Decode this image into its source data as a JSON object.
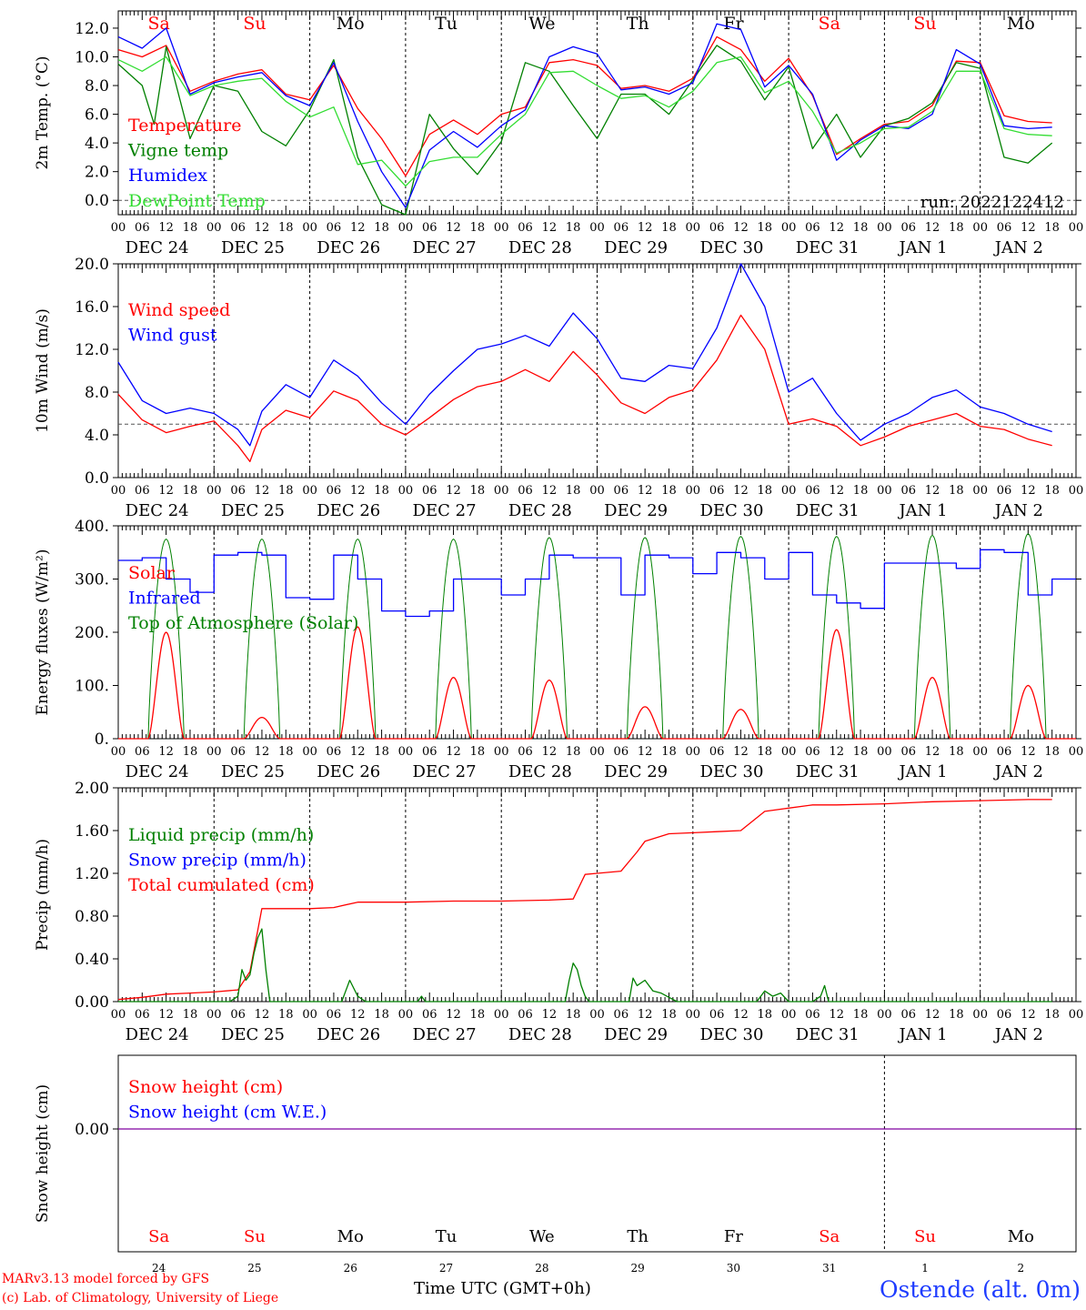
{
  "days_top": [
    {
      "label": "Sa",
      "color": "#ff0000"
    },
    {
      "label": "Su",
      "color": "#ff0000"
    },
    {
      "label": "Mo",
      "color": "#000000"
    },
    {
      "label": "Tu",
      "color": "#000000"
    },
    {
      "label": "We",
      "color": "#000000"
    },
    {
      "label": "Th",
      "color": "#000000"
    },
    {
      "label": "Fr",
      "color": "#000000"
    },
    {
      "label": "Sa",
      "color": "#ff0000"
    },
    {
      "label": "Su",
      "color": "#ff0000"
    },
    {
      "label": "Mo",
      "color": "#000000"
    }
  ],
  "date_labels": [
    "DEC 24",
    "DEC 25",
    "DEC 26",
    "DEC 27",
    "DEC 28",
    "DEC 29",
    "DEC 30",
    "DEC 31",
    "JAN  1",
    "JAN  2"
  ],
  "hour_labels": [
    "00",
    "06",
    "12",
    "18"
  ],
  "final_hour_label": "00",
  "bottom_day_numbers": [
    "24",
    "25",
    "26",
    "27",
    "28",
    "29",
    "30",
    "31",
    "1",
    "2"
  ],
  "colors": {
    "red": "#ff0000",
    "green": "#008000",
    "blue": "#0000ff",
    "lightgreen": "#33dd33",
    "purple": "#8000a0"
  },
  "footer": {
    "credit1": "MARv3.13 model forced by GFS",
    "credit2": "(c) Lab. of Climatology, University of Liege",
    "time_label": "Time UTC (GMT+0h)",
    "station": "Ostende (alt. 0m)"
  },
  "chart_data": [
    {
      "id": "temp",
      "type": "line",
      "ylabel": "2m Temp. (°C)",
      "ylim": [
        -1,
        13.2
      ],
      "yticks": [
        0,
        2,
        4,
        6,
        8,
        10,
        12
      ],
      "tick_labels": [
        "0.0",
        "2.0",
        "4.0",
        "6.0",
        "8.0",
        "10.0",
        "12.0"
      ],
      "hline": 0,
      "annotation": "run: 2022122412",
      "legend": [
        {
          "text": "Temperature",
          "color": "#ff0000"
        },
        {
          "text": "Vigne temp",
          "color": "#008000"
        },
        {
          "text": "Humidex",
          "color": "#0000ff"
        },
        {
          "text": "DewPoint Temp",
          "color": "#33dd33"
        }
      ],
      "series": [
        {
          "name": "Temperature",
          "color": "#ff0000",
          "x": [
            0,
            6,
            12,
            18,
            24,
            30,
            36,
            42,
            48,
            54,
            60,
            66,
            72,
            78,
            84,
            90,
            96,
            102,
            108,
            114,
            120,
            126,
            132,
            138,
            144,
            150,
            156,
            162,
            168,
            174,
            180,
            186,
            192,
            198,
            204,
            210,
            216,
            222,
            228,
            234
          ],
          "values": [
            10.5,
            10.0,
            10.8,
            7.6,
            8.3,
            8.8,
            9.1,
            7.4,
            7.0,
            9.4,
            6.4,
            4.3,
            1.7,
            4.6,
            5.6,
            4.6,
            6.0,
            6.5,
            9.6,
            9.8,
            9.4,
            7.8,
            8.0,
            7.6,
            8.5,
            11.4,
            10.5,
            8.3,
            9.9,
            7.3,
            3.2,
            4.3,
            5.3,
            5.5,
            6.6,
            9.7,
            9.6,
            5.9,
            5.5,
            5.4
          ]
        },
        {
          "name": "Vigne temp",
          "color": "#008000",
          "x": [
            0,
            6,
            9,
            12,
            18,
            24,
            30,
            36,
            42,
            48,
            54,
            60,
            66,
            72,
            78,
            84,
            90,
            96,
            102,
            108,
            114,
            120,
            126,
            132,
            138,
            144,
            150,
            156,
            162,
            168,
            174,
            180,
            186,
            192,
            198,
            204,
            210,
            216,
            222,
            228,
            234
          ],
          "values": [
            9.5,
            8.0,
            5.3,
            10.7,
            4.3,
            8.0,
            7.6,
            4.8,
            3.8,
            6.3,
            9.8,
            3.0,
            -0.3,
            -1.0,
            6.0,
            3.6,
            1.8,
            4.1,
            9.6,
            9.0,
            6.6,
            4.3,
            7.4,
            7.4,
            6.0,
            8.4,
            10.8,
            9.7,
            7.0,
            9.3,
            3.6,
            6.0,
            3.0,
            5.2,
            5.7,
            6.8,
            9.6,
            9.2,
            3.0,
            2.6,
            4.0
          ]
        },
        {
          "name": "Humidex",
          "color": "#0000ff",
          "x": [
            0,
            6,
            12,
            18,
            24,
            30,
            36,
            42,
            48,
            54,
            60,
            66,
            72,
            78,
            84,
            90,
            96,
            102,
            108,
            114,
            120,
            126,
            132,
            138,
            144,
            150,
            156,
            162,
            168,
            174,
            180,
            186,
            192,
            198,
            204,
            210,
            216,
            222,
            228,
            234
          ],
          "values": [
            11.4,
            10.6,
            12.0,
            7.4,
            8.2,
            8.6,
            8.9,
            7.3,
            6.6,
            9.6,
            5.5,
            2.0,
            -0.5,
            3.5,
            4.8,
            3.7,
            5.2,
            6.3,
            10.0,
            10.7,
            10.2,
            7.7,
            7.9,
            7.4,
            8.2,
            12.3,
            11.9,
            7.9,
            9.4,
            7.4,
            2.8,
            4.2,
            5.2,
            5.0,
            6.0,
            10.5,
            9.5,
            5.2,
            5.0,
            5.1
          ]
        },
        {
          "name": "DewPoint Temp",
          "color": "#33dd33",
          "x": [
            0,
            6,
            12,
            18,
            24,
            30,
            36,
            42,
            48,
            54,
            60,
            66,
            72,
            78,
            84,
            90,
            96,
            102,
            108,
            114,
            120,
            126,
            132,
            138,
            144,
            150,
            156,
            162,
            168,
            174,
            180,
            186,
            192,
            198,
            204,
            210,
            216,
            222,
            228,
            234
          ],
          "values": [
            9.8,
            9.0,
            10.0,
            7.3,
            8.0,
            8.3,
            8.5,
            6.9,
            5.8,
            6.5,
            2.5,
            2.8,
            1.0,
            2.7,
            3.0,
            3.0,
            4.6,
            6.0,
            8.9,
            9.0,
            8.0,
            7.1,
            7.3,
            6.5,
            7.6,
            9.6,
            10.0,
            7.5,
            8.3,
            6.2,
            3.3,
            4.0,
            5.0,
            5.1,
            6.2,
            9.0,
            9.0,
            5.0,
            4.6,
            4.5
          ]
        }
      ]
    },
    {
      "id": "wind",
      "type": "line",
      "ylabel": "10m Wind (m/s)",
      "ylim": [
        0,
        20
      ],
      "yticks": [
        0,
        4,
        8,
        12,
        16,
        20
      ],
      "tick_labels": [
        "0.0",
        "4.0",
        "8.0",
        "12.0",
        "16.0",
        "20.0"
      ],
      "hline": 5,
      "legend": [
        {
          "text": "Wind speed",
          "color": "#ff0000"
        },
        {
          "text": "Wind gust",
          "color": "#0000ff"
        }
      ],
      "series": [
        {
          "name": "Wind speed",
          "color": "#ff0000",
          "x": [
            0,
            6,
            12,
            18,
            24,
            30,
            33,
            36,
            42,
            48,
            54,
            60,
            66,
            72,
            78,
            84,
            90,
            96,
            102,
            108,
            114,
            120,
            126,
            132,
            138,
            144,
            150,
            156,
            162,
            168,
            174,
            180,
            186,
            192,
            198,
            204,
            210,
            216,
            222,
            228,
            234
          ],
          "values": [
            7.8,
            5.4,
            4.2,
            4.8,
            5.3,
            3.0,
            1.5,
            4.5,
            6.3,
            5.6,
            8.1,
            7.2,
            5.0,
            4.0,
            5.6,
            7.3,
            8.5,
            9.0,
            10.1,
            9.0,
            11.8,
            9.6,
            7.0,
            6.0,
            7.5,
            8.2,
            11.0,
            15.2,
            12.0,
            5.0,
            5.5,
            4.8,
            3.0,
            3.8,
            4.8,
            5.4,
            6.0,
            4.8,
            4.5,
            3.6,
            3.0
          ]
        },
        {
          "name": "Wind gust",
          "color": "#0000ff",
          "x": [
            0,
            6,
            12,
            18,
            24,
            30,
            33,
            36,
            42,
            48,
            54,
            60,
            66,
            72,
            78,
            84,
            90,
            96,
            102,
            108,
            114,
            120,
            126,
            132,
            138,
            144,
            150,
            156,
            162,
            168,
            174,
            180,
            186,
            192,
            198,
            204,
            210,
            216,
            222,
            228,
            234
          ],
          "values": [
            10.8,
            7.2,
            6.0,
            6.5,
            6.0,
            4.5,
            3.0,
            6.2,
            8.7,
            7.5,
            11.0,
            9.5,
            7.0,
            5.0,
            7.8,
            10.0,
            12.0,
            12.5,
            13.3,
            12.3,
            15.4,
            13.0,
            9.3,
            9.0,
            10.5,
            10.2,
            14.0,
            20.0,
            16.0,
            8.0,
            9.3,
            6.0,
            3.5,
            5.0,
            6.0,
            7.5,
            8.2,
            6.6,
            6.0,
            5.0,
            4.3
          ]
        }
      ]
    },
    {
      "id": "energy",
      "type": "line",
      "ylabel": "Energy fluxes (W/m²)",
      "ylim": [
        0,
        400
      ],
      "yticks": [
        0,
        100,
        200,
        300,
        400
      ],
      "tick_labels": [
        "0.",
        "100.",
        "200.",
        "300.",
        "400."
      ],
      "legend": [
        {
          "text": "Solar",
          "color": "#ff0000"
        },
        {
          "text": "Infrared",
          "color": "#0000ff"
        },
        {
          "text": "Top of Atmosphere (Solar)",
          "color": "#008000"
        }
      ],
      "solar_peaks": [
        200,
        40,
        210,
        115,
        110,
        60,
        55,
        205,
        115,
        100
      ],
      "toa_peaks": [
        375,
        375,
        375,
        375,
        378,
        378,
        380,
        380,
        382,
        385
      ],
      "series": [
        {
          "name": "Infrared",
          "color": "#0000ff",
          "x": [
            0,
            6,
            12,
            18,
            24,
            30,
            36,
            42,
            48,
            54,
            60,
            66,
            72,
            78,
            84,
            90,
            96,
            102,
            108,
            114,
            120,
            126,
            132,
            138,
            144,
            150,
            156,
            162,
            168,
            174,
            180,
            186,
            192,
            198,
            204,
            210,
            216,
            222,
            228,
            234
          ],
          "values": [
            335,
            340,
            300,
            275,
            345,
            350,
            345,
            265,
            262,
            345,
            300,
            240,
            230,
            240,
            300,
            300,
            270,
            300,
            345,
            340,
            340,
            270,
            345,
            340,
            310,
            350,
            340,
            300,
            350,
            270,
            255,
            245,
            330,
            330,
            330,
            320,
            355,
            350,
            270,
            300
          ]
        }
      ]
    },
    {
      "id": "precip",
      "type": "line",
      "ylabel": "Precip (mm/h)",
      "ylim": [
        0,
        2.0
      ],
      "yticks": [
        0,
        0.4,
        0.8,
        1.2,
        1.6,
        2.0
      ],
      "tick_labels": [
        "0.00",
        "0.40",
        "0.80",
        "1.20",
        "1.60",
        "2.00"
      ],
      "legend": [
        {
          "text": "Liquid precip (mm/h)",
          "color": "#008000"
        },
        {
          "text": "Snow precip (mm/h)",
          "color": "#0000ff"
        },
        {
          "text": "Total cumulated (cm)",
          "color": "#ff0000"
        }
      ],
      "series": [
        {
          "name": "Total cumulated (cm)",
          "color": "#ff0000",
          "x": [
            0,
            6,
            12,
            18,
            24,
            30,
            33,
            36,
            42,
            48,
            54,
            60,
            72,
            84,
            96,
            108,
            114,
            117,
            120,
            126,
            130,
            132,
            138,
            144,
            150,
            156,
            162,
            168,
            174,
            180,
            192,
            204,
            216,
            228,
            234
          ],
          "values": [
            0.02,
            0.04,
            0.07,
            0.08,
            0.09,
            0.11,
            0.28,
            0.87,
            0.87,
            0.87,
            0.88,
            0.93,
            0.93,
            0.94,
            0.94,
            0.95,
            0.96,
            1.19,
            1.2,
            1.22,
            1.4,
            1.5,
            1.57,
            1.58,
            1.59,
            1.6,
            1.78,
            1.81,
            1.84,
            1.84,
            1.85,
            1.87,
            1.88,
            1.89,
            1.89
          ]
        },
        {
          "name": "Liquid precip (mm/h)",
          "color": "#008000",
          "x": [
            0,
            28,
            30,
            31,
            32,
            33,
            34,
            35,
            36,
            37,
            38,
            52,
            56,
            58,
            60,
            62,
            64,
            75,
            76,
            77,
            112,
            113,
            114,
            115,
            116,
            117,
            118,
            120,
            128,
            129,
            130,
            132,
            134,
            136,
            138,
            140,
            144,
            160,
            162,
            164,
            166,
            168,
            174,
            176,
            177,
            178,
            180,
            234
          ],
          "values": [
            0,
            0,
            0.05,
            0.3,
            0.2,
            0.25,
            0.45,
            0.6,
            0.68,
            0.3,
            0,
            0,
            0,
            0.2,
            0.05,
            0,
            0,
            0,
            0.05,
            0,
            0,
            0.2,
            0.36,
            0.3,
            0.15,
            0.05,
            0,
            0,
            0,
            0.22,
            0.15,
            0.2,
            0.1,
            0.08,
            0.04,
            0,
            0,
            0,
            0.1,
            0.05,
            0.08,
            0,
            0,
            0.05,
            0.15,
            0,
            0,
            0
          ]
        }
      ]
    },
    {
      "id": "snow",
      "type": "line",
      "ylabel": "Snow height (cm)",
      "yticks": [
        0
      ],
      "tick_labels": [
        "0.00"
      ],
      "legend": [
        {
          "text": "Snow height (cm)",
          "color": "#ff0000"
        },
        {
          "text": "Snow height (cm W.E.)",
          "color": "#0000ff"
        }
      ],
      "series": [
        {
          "name": "Snow height (cm)",
          "color": "#8000a0",
          "x": [
            0,
            240
          ],
          "values": [
            0,
            0
          ]
        }
      ]
    }
  ]
}
